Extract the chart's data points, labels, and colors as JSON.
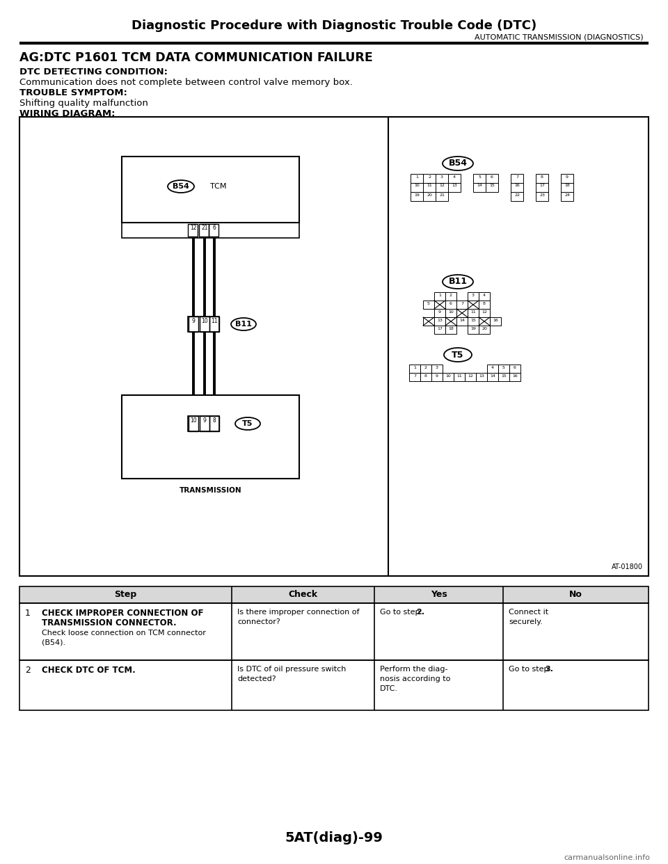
{
  "page_title": "Diagnostic Procedure with Diagnostic Trouble Code (DTC)",
  "page_subtitle": "AUTOMATIC TRANSMISSION (DIAGNOSTICS)",
  "section_title": "AG:DTC P1601 TCM DATA COMMUNICATION FAILURE",
  "dtc_label": "DTC DETECTING CONDITION:",
  "dtc_text": "Communication does not complete between control valve memory box.",
  "symptom_label": "TROUBLE SYMPTOM:",
  "symptom_text": "Shifting quality malfunction",
  "wiring_label": "WIRING DIAGRAM:",
  "diagram_ref": "AT-01800",
  "page_number": "5AT(diag)-99",
  "watermark": "carmanualsonline.info",
  "table_headers": [
    "Step",
    "Check",
    "Yes",
    "No"
  ],
  "bg_color": "#ffffff",
  "line_color": "#000000"
}
